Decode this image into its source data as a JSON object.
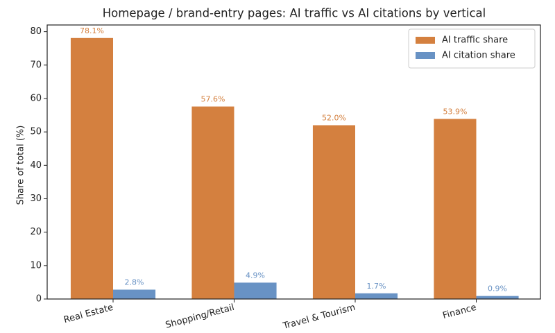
{
  "chart_data": {
    "type": "bar",
    "title": "Homepage / brand-entry pages: AI traffic vs AI citations by vertical",
    "y_label": "Share of total (%)",
    "categories": [
      "Real Estate",
      "Shopping/Retail",
      "Travel & Tourism",
      "Finance"
    ],
    "series": [
      {
        "name": "AI traffic share",
        "color": "#d4803f",
        "values": [
          78.1,
          57.6,
          52.0,
          53.9
        ],
        "value_labels": [
          "78.1%",
          "57.6%",
          "52.0%",
          "53.9%"
        ]
      },
      {
        "name": "AI citation share",
        "color": "#6892c4",
        "values": [
          2.8,
          4.9,
          1.7,
          0.9
        ],
        "value_labels": [
          "2.8%",
          "4.9%",
          "1.7%",
          "0.9%"
        ]
      }
    ],
    "ylim": [
      0,
      82
    ],
    "yticks": [
      0,
      10,
      20,
      30,
      40,
      50,
      60,
      70,
      80
    ],
    "legend": "upper right",
    "grid": false
  }
}
